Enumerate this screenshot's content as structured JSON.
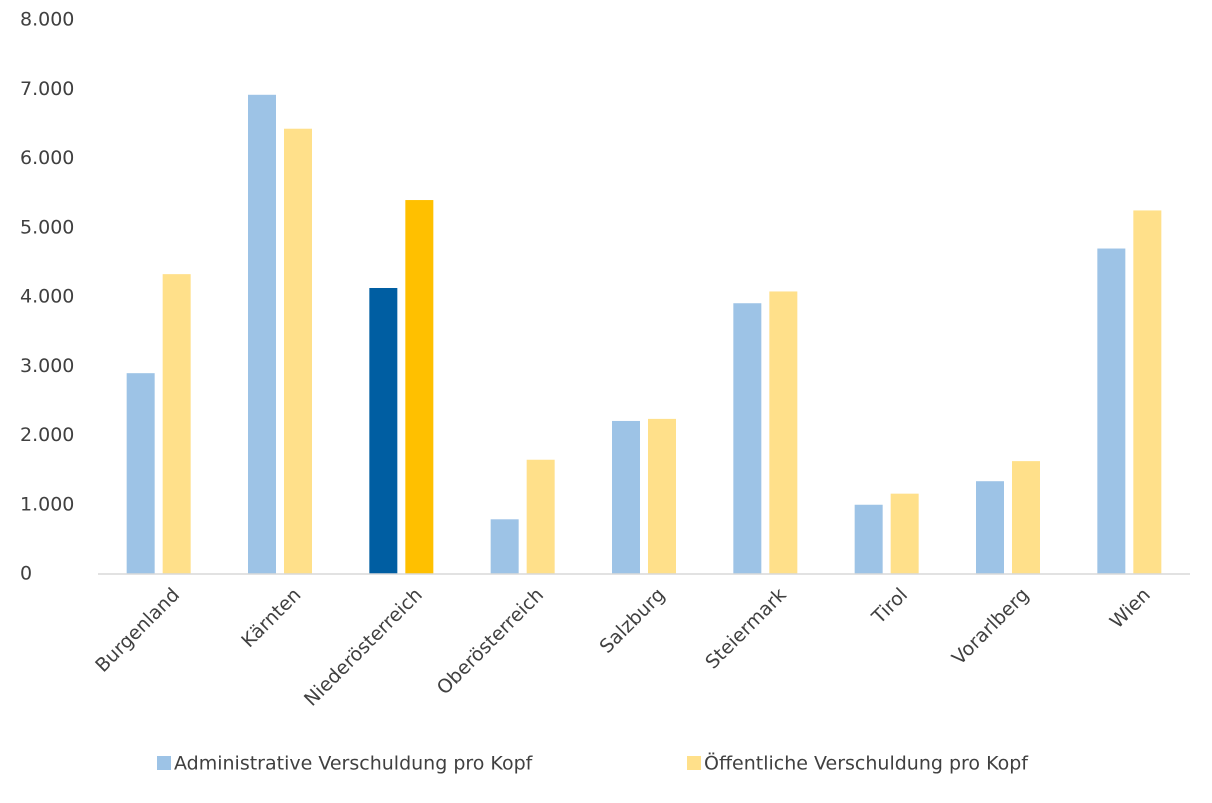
{
  "chart_data": {
    "type": "bar",
    "categories": [
      "Burgenland",
      "Kärnten",
      "Niederösterreich",
      "Oberösterreich",
      "Salzburg",
      "Steiermark",
      "Tirol",
      "Vorarlberg",
      "Wien"
    ],
    "series": [
      {
        "name": "Administrative Verschuldung pro Kopf",
        "color": "#9dc3e6",
        "colors": [
          "#9dc3e6",
          "#9dc3e6",
          "#005ea2",
          "#9dc3e6",
          "#9dc3e6",
          "#9dc3e6",
          "#9dc3e6",
          "#9dc3e6",
          "#9dc3e6"
        ],
        "values": [
          2900,
          6920,
          4130,
          790,
          2210,
          3910,
          1000,
          1340,
          4700
        ]
      },
      {
        "name": "Öffentliche Verschuldung pro Kopf",
        "color": "#ffe08a",
        "colors": [
          "#ffe08a",
          "#ffe08a",
          "#ffc000",
          "#ffe08a",
          "#ffe08a",
          "#ffe08a",
          "#ffe08a",
          "#ffe08a",
          "#ffe08a"
        ],
        "values": [
          4330,
          6430,
          5400,
          1650,
          2240,
          4080,
          1160,
          1630,
          5250
        ]
      }
    ],
    "ylim": [
      0,
      8000
    ],
    "yticks": [
      0,
      {
        "value": 1000,
        "label": "1.000"
      },
      {
        "value": 2000,
        "label": "2.000"
      },
      {
        "value": 3000,
        "label": "3.000"
      },
      {
        "value": 4000,
        "label": "4.000"
      },
      {
        "value": 5000,
        "label": "5.000"
      },
      {
        "value": 6000,
        "label": "6.000"
      },
      {
        "value": 7000,
        "label": "7.000"
      },
      {
        "value": 8000,
        "label": "8.000"
      }
    ],
    "grid": false,
    "legend": "bottom"
  }
}
